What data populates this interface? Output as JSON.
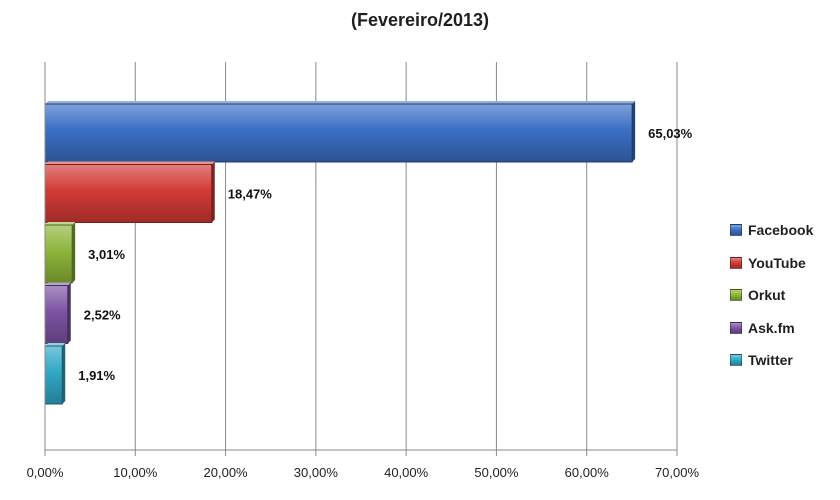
{
  "chart_data": {
    "type": "bar",
    "orientation": "horizontal",
    "title": "(Fevereiro/2013)",
    "categories": [
      "Facebook",
      "YouTube",
      "Orkut",
      "Ask.fm",
      "Twitter"
    ],
    "values": [
      65.03,
      18.47,
      3.01,
      2.52,
      1.91
    ],
    "value_labels": [
      "65,03%",
      "18,47%",
      "3,01%",
      "2,52%",
      "1,91%"
    ],
    "colors": [
      "#3a6fc4",
      "#d23a36",
      "#8db53a",
      "#7c53a3",
      "#31a7c6"
    ],
    "xlim": [
      0,
      70
    ],
    "x_ticks": [
      "0,00%",
      "10,00%",
      "20,00%",
      "30,00%",
      "40,00%",
      "50,00%",
      "60,00%",
      "70,00%"
    ],
    "grid": true,
    "legend_position": "right"
  }
}
